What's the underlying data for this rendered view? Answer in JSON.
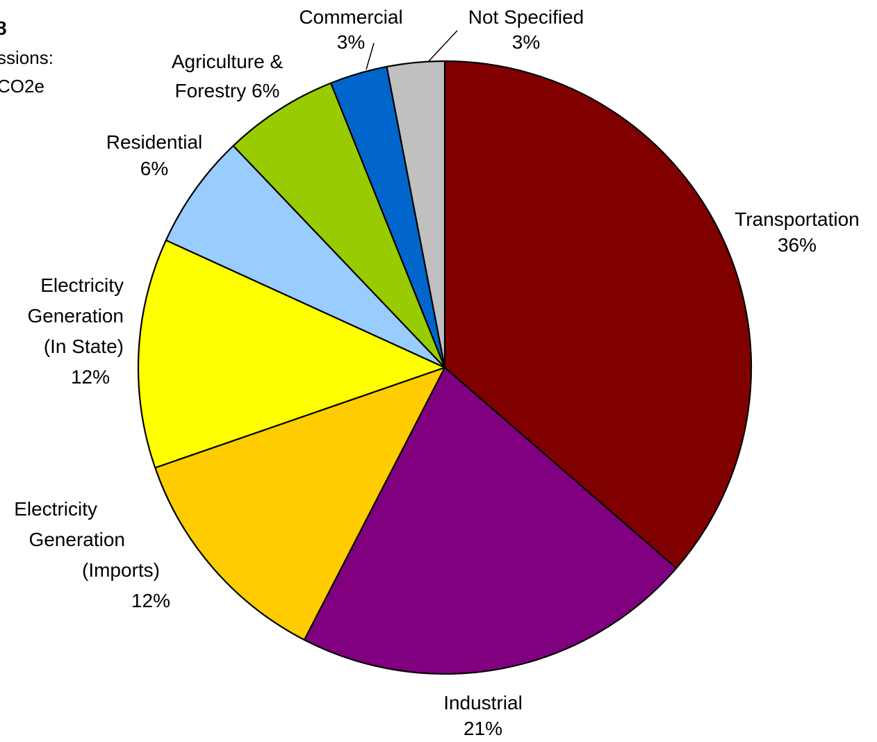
{
  "title_fragment": {
    "line1": "8",
    "line2": "ssions:",
    "line3": "CO2e"
  },
  "chart_data": {
    "type": "pie",
    "start_angle_deg": 0,
    "direction": "clockwise",
    "slice_border_color": "#000000",
    "slices": [
      {
        "name": "Transportation",
        "value": 36,
        "pct_label": "36%",
        "color": "#800000"
      },
      {
        "name": "Industrial",
        "value": 21,
        "pct_label": "21%",
        "color": "#800080"
      },
      {
        "name": "Electricity Generation (Imports)",
        "value": 12,
        "pct_label": "12%",
        "color": "#ffcc00"
      },
      {
        "name": "Electricity Generation (In State)",
        "value": 12,
        "pct_label": "12%",
        "color": "#ffff00"
      },
      {
        "name": "Residential",
        "value": 6,
        "pct_label": "6%",
        "color": "#99ccff"
      },
      {
        "name": "Agriculture & Forestry",
        "value": 6,
        "pct_label": "6%",
        "color": "#99cc00"
      },
      {
        "name": "Commercial",
        "value": 3,
        "pct_label": "3%",
        "color": "#0066cc"
      },
      {
        "name": "Not Specified",
        "value": 3,
        "pct_label": "3%",
        "color": "#c0c0c0"
      }
    ],
    "labels": [
      {
        "lines": [
          "Transportation",
          "36%"
        ]
      },
      {
        "lines": [
          "Industrial",
          "21%"
        ]
      },
      {
        "lines": [
          "Electricity",
          "Generation",
          "(Imports)",
          "12%"
        ]
      },
      {
        "lines": [
          "Electricity",
          "Generation",
          "(In State)",
          "12%"
        ]
      },
      {
        "lines": [
          "Residential",
          "6%"
        ]
      },
      {
        "lines": [
          "Agriculture &",
          "Forestry 6%"
        ]
      },
      {
        "lines": [
          "Commercial",
          "3%"
        ]
      },
      {
        "lines": [
          "Not Specified",
          "3%"
        ]
      }
    ]
  }
}
